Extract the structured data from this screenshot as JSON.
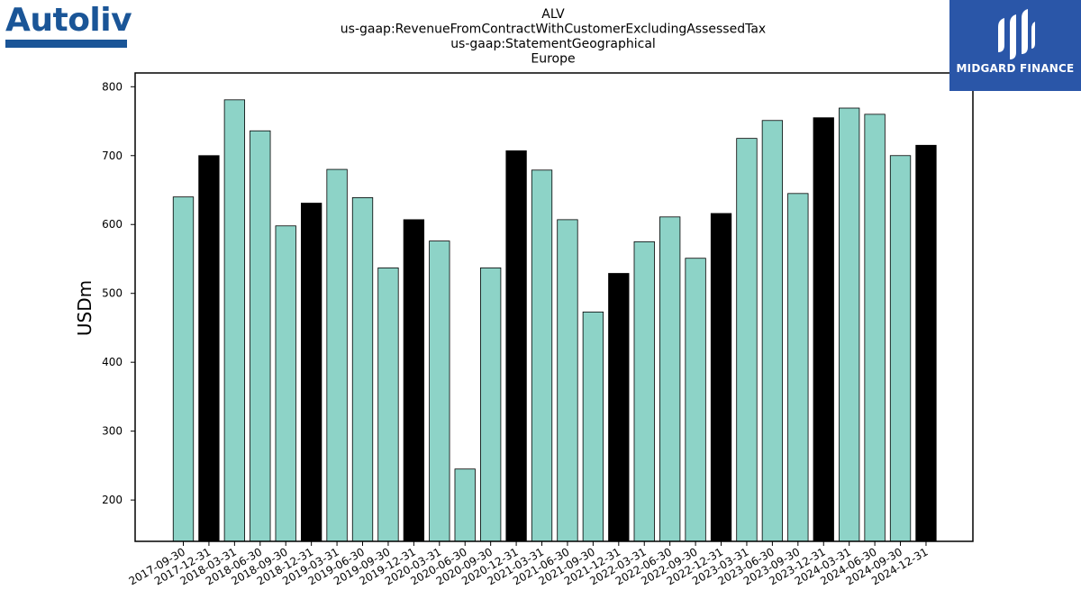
{
  "logos": {
    "left_text": "Autoliv",
    "right_text": "MIDGARD FINANCE"
  },
  "colors": {
    "bar_default": "#8dd3c7",
    "bar_q4": "#000000",
    "bar_edge": "#000000",
    "brand_left": "#1a5597",
    "brand_right_bg": "#2a56a8"
  },
  "chart_data": {
    "type": "bar",
    "title_lines": [
      "ALV",
      "us-gaap:RevenueFromContractWithCustomerExcludingAssessedTax",
      "us-gaap:StatementGeographical",
      "Europe"
    ],
    "xlabel": "",
    "ylabel": "USDm",
    "ylim": [
      140,
      820
    ],
    "yticks": [
      200,
      300,
      400,
      500,
      600,
      700,
      800
    ],
    "grid": false,
    "categories": [
      "2017-09-30",
      "2017-12-31",
      "2018-03-31",
      "2018-06-30",
      "2018-09-30",
      "2018-12-31",
      "2019-03-31",
      "2019-06-30",
      "2019-09-30",
      "2019-12-31",
      "2020-03-31",
      "2020-06-30",
      "2020-09-30",
      "2020-12-31",
      "2021-03-31",
      "2021-06-30",
      "2021-09-30",
      "2021-12-31",
      "2022-03-31",
      "2022-06-30",
      "2022-09-30",
      "2022-12-31",
      "2023-03-31",
      "2023-06-30",
      "2023-09-30",
      "2023-12-31",
      "2024-03-31",
      "2024-06-30",
      "2024-09-30",
      "2024-12-31"
    ],
    "values": [
      640,
      700,
      781,
      736,
      598,
      631,
      680,
      639,
      537,
      607,
      576,
      245,
      537,
      707,
      679,
      607,
      473,
      529,
      575,
      611,
      551,
      616,
      725,
      751,
      645,
      755,
      769,
      760,
      700,
      715
    ],
    "highlight": [
      false,
      true,
      false,
      false,
      false,
      true,
      false,
      false,
      false,
      true,
      false,
      false,
      false,
      true,
      false,
      false,
      false,
      true,
      false,
      false,
      false,
      true,
      false,
      false,
      false,
      true,
      false,
      false,
      false,
      true
    ]
  }
}
